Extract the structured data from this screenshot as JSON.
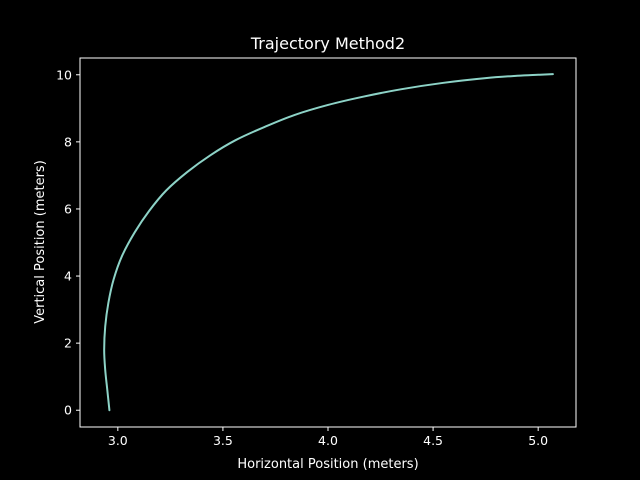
{
  "chart_data": {
    "type": "line",
    "title": "Trajectory Method2",
    "xlabel": "Horizontal Position (meters)",
    "ylabel": "Vertical Position (meters)",
    "xlim": [
      2.82,
      5.18
    ],
    "ylim": [
      -0.5,
      10.5
    ],
    "xticks": [
      3.0,
      3.5,
      4.0,
      4.5,
      5.0
    ],
    "xtick_labels": [
      "3.0",
      "3.5",
      "4.0",
      "4.5",
      "5.0"
    ],
    "yticks": [
      0,
      2,
      4,
      6,
      8,
      10
    ],
    "ytick_labels": [
      "0",
      "2",
      "4",
      "6",
      "8",
      "10"
    ],
    "grid": false,
    "colors": {
      "background": "#000000",
      "axes": "#ffffff",
      "line": "#8dd3c7"
    },
    "series": [
      {
        "x": [
          2.96,
          2.95,
          2.94,
          2.935,
          2.94,
          2.955,
          2.98,
          3.02,
          3.08,
          3.15,
          3.23,
          3.33,
          3.44,
          3.56,
          3.7,
          3.84,
          4.0,
          4.17,
          4.35,
          4.55,
          4.75,
          4.9,
          5.0,
          5.07
        ],
        "y": [
          0.0,
          0.6,
          1.2,
          1.8,
          2.5,
          3.2,
          3.9,
          4.6,
          5.3,
          5.95,
          6.55,
          7.1,
          7.6,
          8.05,
          8.45,
          8.8,
          9.1,
          9.35,
          9.57,
          9.76,
          9.9,
          9.97,
          10.0,
          10.02
        ]
      }
    ]
  }
}
